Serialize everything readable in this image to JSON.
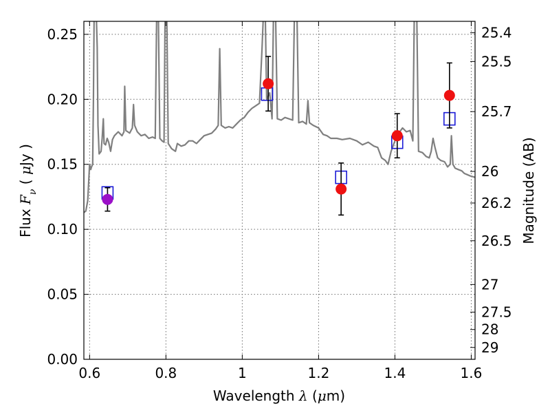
{
  "chart_data": {
    "type": "scatter",
    "title": "",
    "xlabel": "Wavelength  λ (μm)",
    "ylabel": "Flux  F_ν  ( μJy )",
    "y2label": "Magnitude (AB)",
    "xlim": [
      0.585,
      1.61
    ],
    "ylim": [
      0.0,
      0.26
    ],
    "grid": true,
    "x_ticks": [
      {
        "value": 0.6,
        "label": "0.6"
      },
      {
        "value": 0.8,
        "label": "0.8"
      },
      {
        "value": 1.0,
        "label": "1"
      },
      {
        "value": 1.2,
        "label": "1.2"
      },
      {
        "value": 1.4,
        "label": "1.4"
      },
      {
        "value": 1.6,
        "label": "1.6"
      }
    ],
    "y_ticks": [
      {
        "value": 0.0,
        "label": "0.00"
      },
      {
        "value": 0.05,
        "label": "0.05"
      },
      {
        "value": 0.1,
        "label": "0.10"
      },
      {
        "value": 0.15,
        "label": "0.15"
      },
      {
        "value": 0.2,
        "label": "0.20"
      },
      {
        "value": 0.25,
        "label": "0.25"
      }
    ],
    "y2_ticks": [
      {
        "mag": 25.4,
        "label": "25.4"
      },
      {
        "mag": 25.5,
        "label": "25.5"
      },
      {
        "mag": 25.7,
        "label": "25.7"
      },
      {
        "mag": 26.0,
        "label": "26"
      },
      {
        "mag": 26.2,
        "label": "26.2"
      },
      {
        "mag": 26.5,
        "label": "26.5"
      },
      {
        "mag": 27.0,
        "label": "27"
      },
      {
        "mag": 27.5,
        "label": "27.5"
      },
      {
        "mag": 28.0,
        "label": "28"
      },
      {
        "mag": 29.0,
        "label": "29"
      }
    ],
    "observed": [
      {
        "x": 0.647,
        "y": 0.123,
        "err": 0.009,
        "color": "#9b10c8"
      },
      {
        "x": 1.068,
        "y": 0.212,
        "err": 0.021,
        "color": "#ee1111"
      },
      {
        "x": 1.259,
        "y": 0.131,
        "err": 0.02,
        "color": "#ee1111"
      },
      {
        "x": 1.406,
        "y": 0.172,
        "err": 0.017,
        "color": "#ee1111"
      },
      {
        "x": 1.543,
        "y": 0.203,
        "err": 0.025,
        "color": "#ee1111"
      }
    ],
    "model": [
      {
        "x": 0.647,
        "y": 0.128
      },
      {
        "x": 1.065,
        "y": 0.204
      },
      {
        "x": 1.259,
        "y": 0.14
      },
      {
        "x": 1.406,
        "y": 0.167
      },
      {
        "x": 1.543,
        "y": 0.185
      }
    ],
    "sed_curve": [
      [
        0.585,
        0.113
      ],
      [
        0.59,
        0.114
      ],
      [
        0.595,
        0.122
      ],
      [
        0.6,
        0.15
      ],
      [
        0.603,
        0.146
      ],
      [
        0.605,
        0.148
      ],
      [
        0.608,
        0.15
      ],
      [
        0.61,
        0.2
      ],
      [
        0.612,
        0.27
      ],
      [
        0.617,
        0.27
      ],
      [
        0.62,
        0.24
      ],
      [
        0.622,
        0.18
      ],
      [
        0.625,
        0.158
      ],
      [
        0.63,
        0.16
      ],
      [
        0.633,
        0.17
      ],
      [
        0.636,
        0.185
      ],
      [
        0.638,
        0.166
      ],
      [
        0.642,
        0.165
      ],
      [
        0.646,
        0.17
      ],
      [
        0.65,
        0.167
      ],
      [
        0.655,
        0.16
      ],
      [
        0.66,
        0.169
      ],
      [
        0.665,
        0.172
      ],
      [
        0.675,
        0.175
      ],
      [
        0.685,
        0.172
      ],
      [
        0.69,
        0.175
      ],
      [
        0.692,
        0.21
      ],
      [
        0.695,
        0.176
      ],
      [
        0.705,
        0.174
      ],
      [
        0.712,
        0.178
      ],
      [
        0.715,
        0.196
      ],
      [
        0.718,
        0.18
      ],
      [
        0.725,
        0.175
      ],
      [
        0.735,
        0.172
      ],
      [
        0.745,
        0.173
      ],
      [
        0.755,
        0.17
      ],
      [
        0.765,
        0.171
      ],
      [
        0.772,
        0.17
      ],
      [
        0.776,
        0.27
      ],
      [
        0.78,
        0.27
      ],
      [
        0.784,
        0.17
      ],
      [
        0.79,
        0.168
      ],
      [
        0.795,
        0.167
      ],
      [
        0.798,
        0.27
      ],
      [
        0.802,
        0.27
      ],
      [
        0.806,
        0.166
      ],
      [
        0.815,
        0.162
      ],
      [
        0.825,
        0.16
      ],
      [
        0.83,
        0.166
      ],
      [
        0.84,
        0.164
      ],
      [
        0.85,
        0.165
      ],
      [
        0.86,
        0.168
      ],
      [
        0.87,
        0.168
      ],
      [
        0.88,
        0.166
      ],
      [
        0.89,
        0.169
      ],
      [
        0.9,
        0.172
      ],
      [
        0.91,
        0.173
      ],
      [
        0.92,
        0.174
      ],
      [
        0.93,
        0.177
      ],
      [
        0.937,
        0.18
      ],
      [
        0.941,
        0.239
      ],
      [
        0.945,
        0.18
      ],
      [
        0.955,
        0.178
      ],
      [
        0.965,
        0.179
      ],
      [
        0.975,
        0.178
      ],
      [
        0.985,
        0.181
      ],
      [
        0.995,
        0.184
      ],
      [
        1.005,
        0.186
      ],
      [
        1.015,
        0.19
      ],
      [
        1.025,
        0.193
      ],
      [
        1.035,
        0.195
      ],
      [
        1.045,
        0.197
      ],
      [
        1.052,
        0.24
      ],
      [
        1.056,
        0.27
      ],
      [
        1.06,
        0.27
      ],
      [
        1.064,
        0.2
      ],
      [
        1.072,
        0.205
      ],
      [
        1.078,
        0.185
      ],
      [
        1.082,
        0.27
      ],
      [
        1.087,
        0.27
      ],
      [
        1.092,
        0.185
      ],
      [
        1.102,
        0.184
      ],
      [
        1.112,
        0.186
      ],
      [
        1.122,
        0.185
      ],
      [
        1.132,
        0.184
      ],
      [
        1.137,
        0.27
      ],
      [
        1.143,
        0.27
      ],
      [
        1.148,
        0.182
      ],
      [
        1.158,
        0.183
      ],
      [
        1.168,
        0.181
      ],
      [
        1.172,
        0.199
      ],
      [
        1.176,
        0.182
      ],
      [
        1.186,
        0.18
      ],
      [
        1.2,
        0.178
      ],
      [
        1.212,
        0.173
      ],
      [
        1.222,
        0.172
      ],
      [
        1.232,
        0.17
      ],
      [
        1.248,
        0.17
      ],
      [
        1.262,
        0.169
      ],
      [
        1.282,
        0.17
      ],
      [
        1.3,
        0.168
      ],
      [
        1.315,
        0.165
      ],
      [
        1.33,
        0.167
      ],
      [
        1.345,
        0.164
      ],
      [
        1.355,
        0.163
      ],
      [
        1.365,
        0.155
      ],
      [
        1.375,
        0.153
      ],
      [
        1.382,
        0.15
      ],
      [
        1.39,
        0.16
      ],
      [
        1.4,
        0.168
      ],
      [
        1.41,
        0.174
      ],
      [
        1.42,
        0.178
      ],
      [
        1.43,
        0.175
      ],
      [
        1.44,
        0.176
      ],
      [
        1.447,
        0.168
      ],
      [
        1.451,
        0.27
      ],
      [
        1.457,
        0.27
      ],
      [
        1.462,
        0.16
      ],
      [
        1.472,
        0.159
      ],
      [
        1.482,
        0.156
      ],
      [
        1.49,
        0.155
      ],
      [
        1.495,
        0.16
      ],
      [
        1.5,
        0.17
      ],
      [
        1.505,
        0.163
      ],
      [
        1.512,
        0.155
      ],
      [
        1.52,
        0.153
      ],
      [
        1.53,
        0.152
      ],
      [
        1.538,
        0.148
      ],
      [
        1.545,
        0.15
      ],
      [
        1.548,
        0.172
      ],
      [
        1.552,
        0.15
      ],
      [
        1.558,
        0.147
      ],
      [
        1.566,
        0.146
      ],
      [
        1.575,
        0.145
      ],
      [
        1.582,
        0.143
      ],
      [
        1.59,
        0.142
      ],
      [
        1.598,
        0.141
      ],
      [
        1.61,
        0.14
      ]
    ],
    "colors": {
      "sed_curve": "#7f7f7f",
      "model_marker": "#1a1ad6",
      "errorbar": "#000000",
      "grid": "#6a6a6a"
    }
  }
}
